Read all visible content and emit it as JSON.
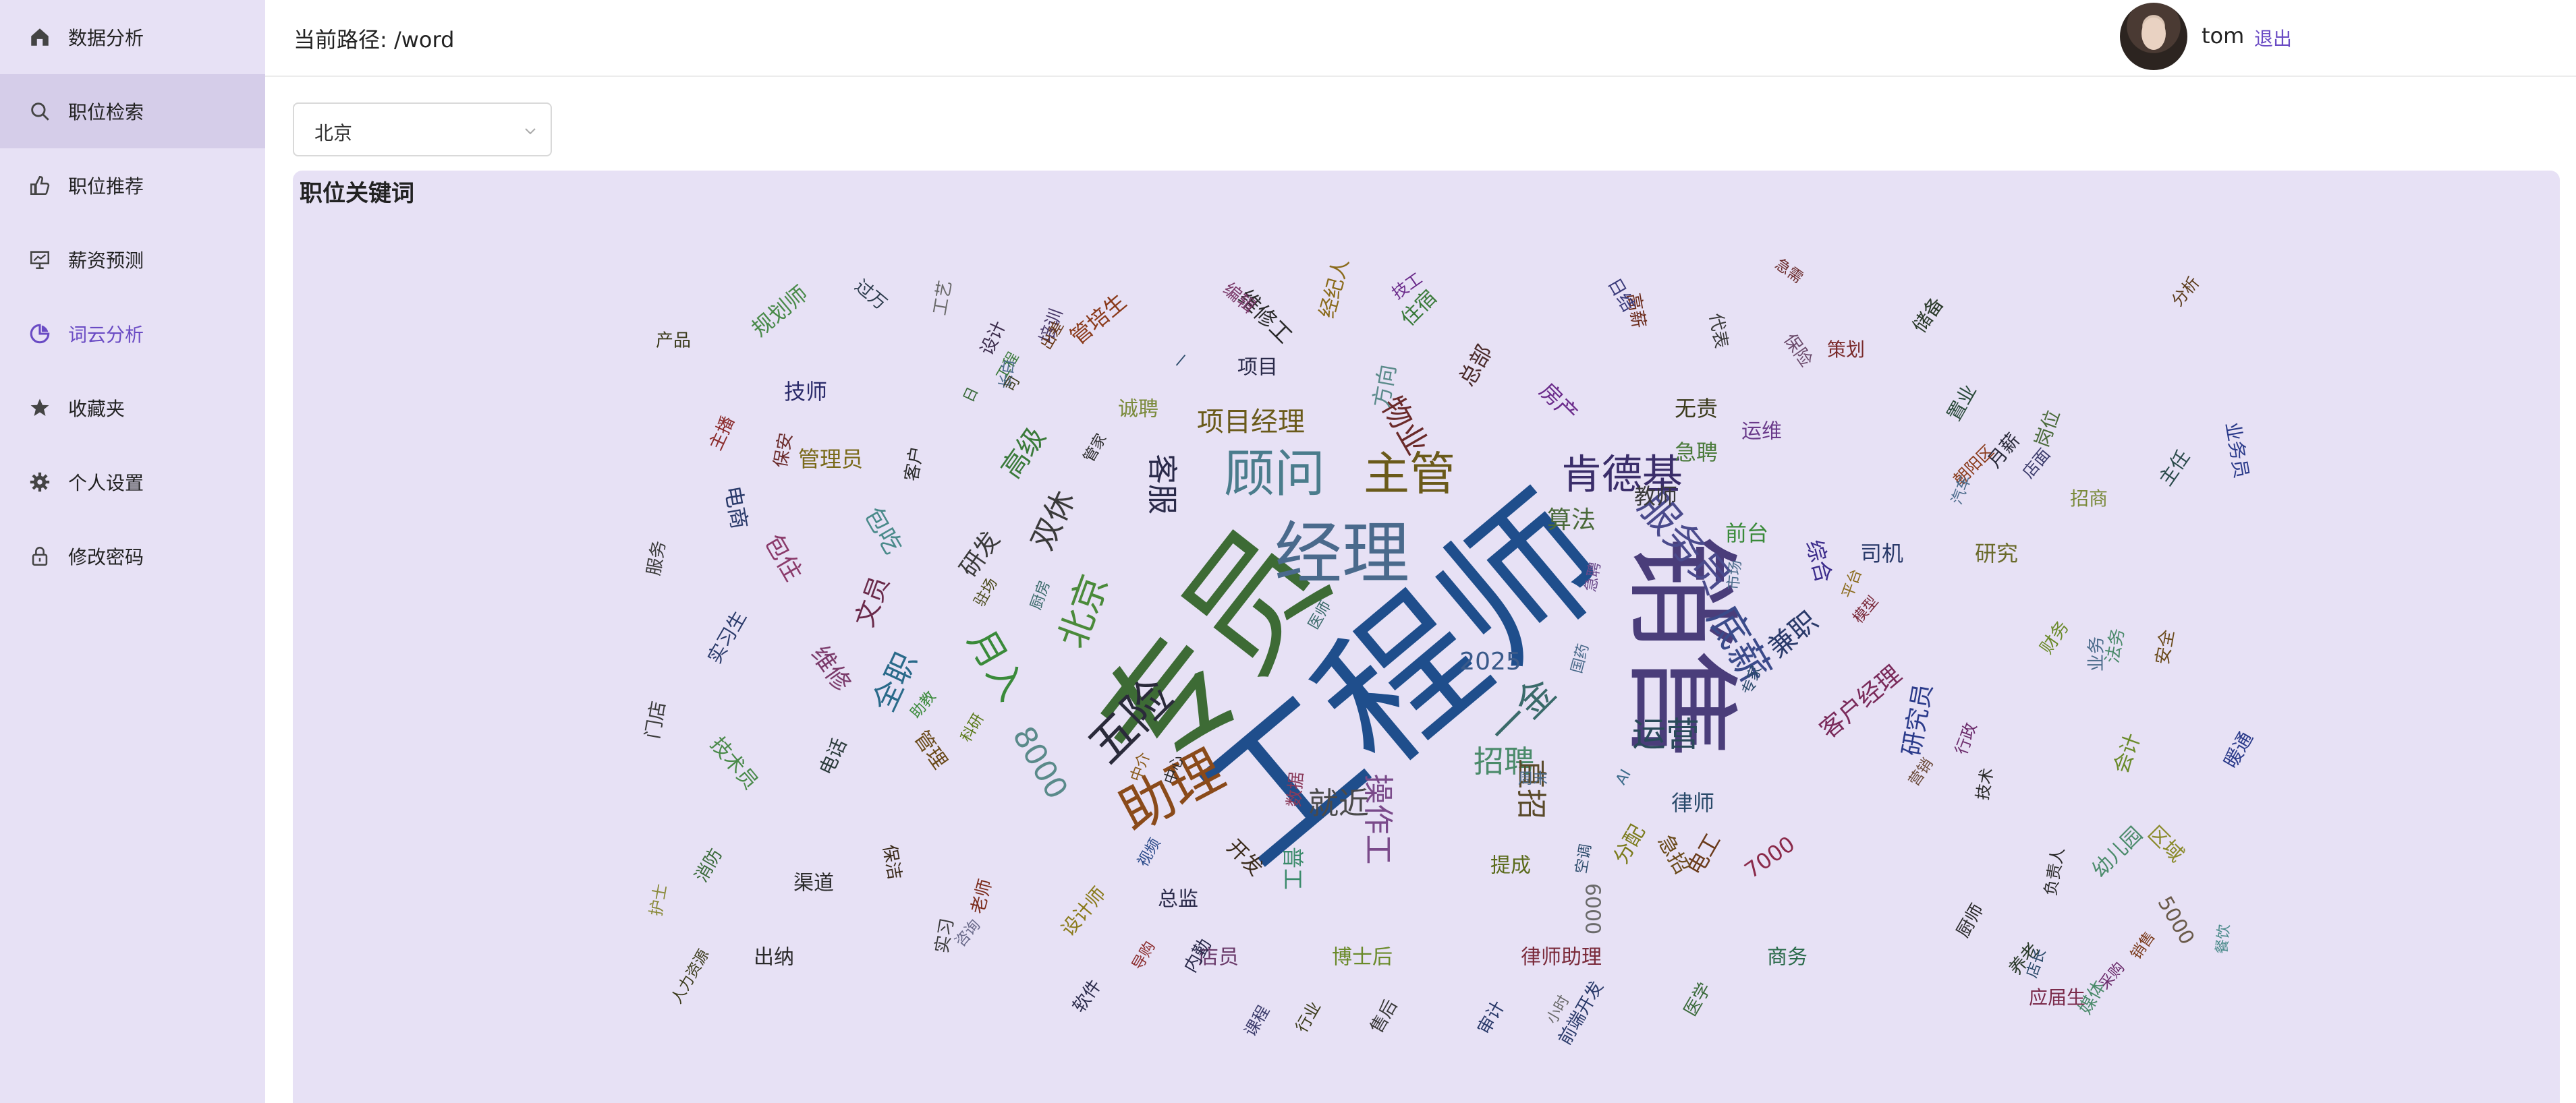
{
  "sidebar": {
    "items": [
      {
        "label": "数据分析",
        "icon": "home-icon"
      },
      {
        "label": "职位检索",
        "icon": "search-icon"
      },
      {
        "label": "职位推荐",
        "icon": "thumb-up-icon"
      },
      {
        "label": "薪资预测",
        "icon": "presentation-icon"
      },
      {
        "label": "词云分析",
        "icon": "chart-icon"
      },
      {
        "label": "收藏夹",
        "icon": "star-icon"
      },
      {
        "label": "个人设置",
        "icon": "gear-icon"
      },
      {
        "label": "修改密码",
        "icon": "lock-icon"
      }
    ],
    "selected_index": 1,
    "active_index": 4,
    "accent_color": "#6a4bc4"
  },
  "header": {
    "path_text": "当前路径: /word",
    "username": "tom",
    "logout_label": "退出"
  },
  "filter": {
    "city": "北京"
  },
  "panel": {
    "title": "职位关键词"
  },
  "word_cloud": [
    {
      "text": "工程师",
      "color": "#1f4e8c"
    },
    {
      "text": "专员",
      "color": "#3d6b35"
    },
    {
      "text": "销售",
      "color": "#4a3d7a"
    },
    {
      "text": "经理",
      "color": "#4a6a8c"
    },
    {
      "text": "助理",
      "color": "#8a4a1a"
    },
    {
      "text": "顾问",
      "color": "#4a7c8c"
    },
    {
      "text": "主管",
      "color": "#6a5a1a"
    },
    {
      "text": "肯德基",
      "color": "#3a2d6a"
    },
    {
      "text": "底薪",
      "color": "#3a4a8a"
    },
    {
      "text": "服务员",
      "color": "#4a4a8c"
    },
    {
      "text": "五险",
      "color": "#2a2a3a"
    },
    {
      "text": "一金",
      "color": "#3a6a6a"
    },
    {
      "text": "北京",
      "color": "#4a8a3a"
    },
    {
      "text": "月入",
      "color": "#3a8a3a"
    },
    {
      "text": "运营",
      "color": "#2a4a5a"
    },
    {
      "text": "招聘",
      "color": "#4a8a6a"
    },
    {
      "text": "就近",
      "color": "#4a4a4a"
    },
    {
      "text": "操作工",
      "color": "#7a4a8a"
    },
    {
      "text": "直招",
      "color": "#5a4a2a"
    },
    {
      "text": "全职",
      "color": "#2a6a8a"
    },
    {
      "text": "双休",
      "color": "#3a3a3a"
    },
    {
      "text": "8000",
      "color": "#5a8a8a"
    },
    {
      "text": "客服",
      "color": "#2a2a4a"
    },
    {
      "text": "物业",
      "color": "#6a2a2a"
    },
    {
      "text": "项目经理",
      "color": "#6a5a1a"
    },
    {
      "text": "算法",
      "color": "#4a6a3a"
    },
    {
      "text": "2025",
      "color": "#3a5a8a"
    },
    {
      "text": "兼职",
      "color": "#2a3a6a"
    },
    {
      "text": "客户经理",
      "color": "#7a2a5a"
    },
    {
      "text": "研究员",
      "color": "#2a3a8a"
    },
    {
      "text": "高级",
      "color": "#3a7a3a"
    },
    {
      "text": "研发",
      "color": "#3a3a3a"
    },
    {
      "text": "文员",
      "color": "#6a2a4a"
    },
    {
      "text": "维修",
      "color": "#7a3a6a"
    },
    {
      "text": "包住",
      "color": "#8a3a6a"
    },
    {
      "text": "包吃",
      "color": "#4a8a8a"
    },
    {
      "text": "电商",
      "color": "#2a3a6a"
    },
    {
      "text": "规划师",
      "color": "#4a8a4a"
    },
    {
      "text": "技师",
      "color": "#2a2a6a"
    },
    {
      "text": "管理员",
      "color": "#7a6a1a"
    },
    {
      "text": "管培生",
      "color": "#8a3a1a"
    },
    {
      "text": "维修工",
      "color": "#2a2a2a"
    },
    {
      "text": "经纪人",
      "color": "#8a6a1a"
    },
    {
      "text": "住宿",
      "color": "#3a7a3a"
    },
    {
      "text": "总部",
      "color": "#4a2a2a"
    },
    {
      "text": "房产",
      "color": "#6a2a8a"
    },
    {
      "text": "无责",
      "color": "#3a3a1a"
    },
    {
      "text": "急聘",
      "color": "#4a7a3a"
    },
    {
      "text": "教师",
      "color": "#3a3a3a"
    },
    {
      "text": "前台",
      "color": "#3a8a3a"
    },
    {
      "text": "综合",
      "color": "#3a2a8a"
    },
    {
      "text": "司机",
      "color": "#2a3a6a"
    },
    {
      "text": "研究",
      "color": "#6a6a2a"
    },
    {
      "text": "运维",
      "color": "#6a3a8a"
    },
    {
      "text": "项目",
      "color": "#2a2a4a"
    },
    {
      "text": "诚聘",
      "color": "#7a8a3a"
    },
    {
      "text": "方向",
      "color": "#5a8a8a"
    },
    {
      "text": "律师",
      "color": "#2a4a6a"
    },
    {
      "text": "电工",
      "color": "#6a3a1a"
    },
    {
      "text": "7000",
      "color": "#8a2a4a"
    },
    {
      "text": "提成",
      "color": "#5a6a1a"
    },
    {
      "text": "开发",
      "color": "#3a2a1a"
    },
    {
      "text": "出纳",
      "color": "#2a2a2a"
    },
    {
      "text": "总监",
      "color": "#2a2a4a"
    },
    {
      "text": "普工",
      "color": "#3a8a6a"
    },
    {
      "text": "博士后",
      "color": "#6a8a2a"
    },
    {
      "text": "律师助理",
      "color": "#7a2a3a"
    },
    {
      "text": "店员",
      "color": "#6a3a6a"
    },
    {
      "text": "商务",
      "color": "#2a6a4a"
    },
    {
      "text": "6000",
      "color": "#6a6a6a"
    },
    {
      "text": "急招",
      "color": "#6a4a1a"
    },
    {
      "text": "分配",
      "color": "#7a7a1a"
    },
    {
      "text": "应届生",
      "color": "#7a2a4a"
    },
    {
      "text": "区域",
      "color": "#8a8a2a"
    },
    {
      "text": "幼儿园",
      "color": "#4a8a6a"
    },
    {
      "text": "5000",
      "color": "#6a5a4a"
    },
    {
      "text": "会计",
      "color": "#6a8a2a"
    },
    {
      "text": "暖通",
      "color": "#2a3a8a"
    },
    {
      "text": "主任",
      "color": "#2a4a4a"
    },
    {
      "text": "业务员",
      "color": "#2a3a8a"
    },
    {
      "text": "招商",
      "color": "#7a8a3a"
    },
    {
      "text": "岗位",
      "color": "#4a6a3a"
    },
    {
      "text": "月薪",
      "color": "#2a2a3a"
    },
    {
      "text": "置业",
      "color": "#2a4a3a"
    },
    {
      "text": "储备",
      "color": "#2a3a2a"
    },
    {
      "text": "策划",
      "color": "#7a2a2a"
    },
    {
      "text": "保险",
      "color": "#6a4a6a"
    },
    {
      "text": "代表",
      "color": "#3a3a3a"
    },
    {
      "text": "高薪",
      "color": "#6a2a1a"
    },
    {
      "text": "渠道",
      "color": "#2a2a2a"
    },
    {
      "text": "保洁",
      "color": "#3a2a1a"
    },
    {
      "text": "老师",
      "color": "#7a2a1a"
    },
    {
      "text": "软件",
      "color": "#2a2a4a"
    },
    {
      "text": "实习生",
      "color": "#2a3a6a"
    },
    {
      "text": "门店",
      "color": "#3a3a3a"
    },
    {
      "text": "技术员",
      "color": "#4a8a4a"
    },
    {
      "text": "电话",
      "color": "#2a3a3a"
    },
    {
      "text": "管理",
      "color": "#6a4a1a"
    },
    {
      "text": "消防",
      "color": "#3a6a3a"
    },
    {
      "text": "服务",
      "color": "#3a3a3a"
    },
    {
      "text": "主播",
      "color": "#8a2a2a"
    },
    {
      "text": "保安",
      "color": "#6a2a2a"
    },
    {
      "text": "客户",
      "color": "#2a2a2a"
    },
    {
      "text": "产品",
      "color": "#3a3a1a"
    },
    {
      "text": "过万",
      "color": "#2a3a4a"
    },
    {
      "text": "工艺",
      "color": "#6a6a6a"
    },
    {
      "text": "设计",
      "color": "#3a2a4a"
    },
    {
      "text": "培训",
      "color": "#4a3a6a"
    },
    {
      "text": "编辑",
      "color": "#7a3a6a"
    },
    {
      "text": "技工",
      "color": "#6a2a8a"
    },
    {
      "text": "日结",
      "color": "#3a3a7a"
    },
    {
      "text": "急需",
      "color": "#6a2a2a"
    },
    {
      "text": "分析",
      "color": "#5a3a1a"
    },
    {
      "text": "朝阳区",
      "color": "#8a3a1a"
    },
    {
      "text": "店面",
      "color": "#3a3a6a"
    },
    {
      "text": "汽车",
      "color": "#4a6a8a"
    },
    {
      "text": "法务",
      "color": "#4a8a6a"
    },
    {
      "text": "安全",
      "color": "#6a4a1a"
    },
    {
      "text": "业务",
      "color": "#4a6a8a"
    },
    {
      "text": "财务",
      "color": "#6a8a2a"
    },
    {
      "text": "行政",
      "color": "#6a2a6a"
    },
    {
      "text": "技术",
      "color": "#2a2a2a"
    },
    {
      "text": "负责人",
      "color": "#2a2a2a"
    },
    {
      "text": "厨师",
      "color": "#2a2a2a"
    },
    {
      "text": "养老",
      "color": "#2a3a2a"
    },
    {
      "text": "媒体",
      "color": "#4a8a6a"
    },
    {
      "text": "餐饮",
      "color": "#4a8a8a"
    },
    {
      "text": "医学",
      "color": "#3a6a3a"
    },
    {
      "text": "前端开发",
      "color": "#2a3a6a"
    },
    {
      "text": "审计",
      "color": "#2a3a6a"
    },
    {
      "text": "售后",
      "color": "#3a3a3a"
    },
    {
      "text": "行业",
      "color": "#3a3a1a"
    },
    {
      "text": "课程",
      "color": "#3a3a6a"
    },
    {
      "text": "内勤",
      "color": "#2a2a4a"
    },
    {
      "text": "实习",
      "color": "#3a3a3a"
    },
    {
      "text": "护士",
      "color": "#8a8a3a"
    },
    {
      "text": "人力资源",
      "color": "#3a3a1a"
    },
    {
      "text": "数据",
      "color": "#8a3a5a"
    },
    {
      "text": "设计师",
      "color": "#8a7a1a"
    },
    {
      "text": "店长",
      "color": "#2a4a6a"
    },
    {
      "text": "销售",
      "color": "#7a3a1a"
    },
    {
      "text": "采购",
      "color": "#6a2a6a"
    },
    {
      "text": "营销",
      "color": "#6a4a3a"
    },
    {
      "text": "专家",
      "color": "#2a4a6a"
    },
    {
      "text": "市场",
      "color": "#4a6a8a"
    },
    {
      "text": "平台",
      "color": "#8a6a1a"
    },
    {
      "text": "模型",
      "color": "#7a2a3a"
    },
    {
      "text": "国药",
      "color": "#4a6a8a"
    },
    {
      "text": "咨询",
      "color": "#6a6a8a"
    },
    {
      "text": "助教",
      "color": "#3a8a3a"
    },
    {
      "text": "周末",
      "color": "#4a6a8a"
    },
    {
      "text": "AI",
      "color": "#3a6a8a"
    },
    {
      "text": "空调",
      "color": "#2a4a6a"
    },
    {
      "text": "中心",
      "color": "#2a2a2a"
    },
    {
      "text": "小时",
      "color": "#6a6a6a"
    },
    {
      "text": "视频",
      "color": "#2a4a8a"
    },
    {
      "text": "导购",
      "color": "#8a2a2a"
    },
    {
      "text": "厨房",
      "color": "#3a6a6a"
    },
    {
      "text": "管家",
      "color": "#2a2a2a"
    },
    {
      "text": "驻场",
      "color": "#4a4a1a"
    },
    {
      "text": "科研",
      "color": "#5a7a1a"
    },
    {
      "text": "急聘",
      "color": "#6a4a8a"
    },
    {
      "text": "医师",
      "color": "#3a6a6a"
    },
    {
      "text": "中介",
      "color": "#8a5a1a"
    },
    {
      "text": "一",
      "color": "#2a4a6a"
    },
    {
      "text": "日",
      "color": "#3a6a3a"
    },
    {
      "text": "工程",
      "color": "#3a7a3a"
    },
    {
      "text": "长白",
      "color": "#4a6a8a"
    },
    {
      "text": "司",
      "color": "#3a3a1a"
    },
    {
      "text": "出差",
      "color": "#6a3a1a"
    },
    {
      "text": "结",
      "color": "#5a7a5a"
    },
    {
      "text": "聘",
      "color": "#6a3a3a"
    },
    {
      "text": "运",
      "color": "#4a4a4a"
    }
  ]
}
